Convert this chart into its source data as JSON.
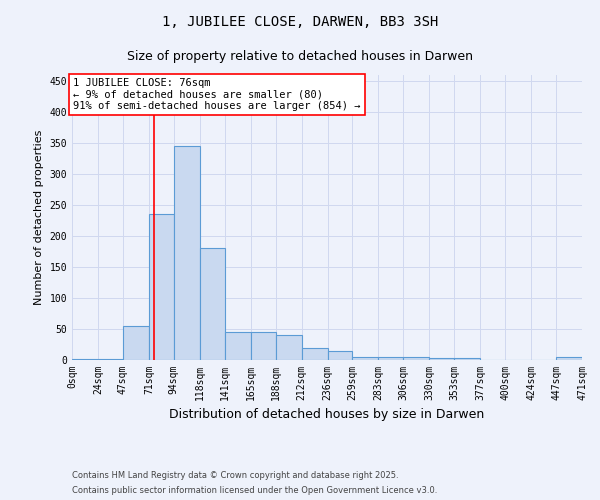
{
  "title": "1, JUBILEE CLOSE, DARWEN, BB3 3SH",
  "subtitle": "Size of property relative to detached houses in Darwen",
  "xlabel": "Distribution of detached houses by size in Darwen",
  "ylabel": "Number of detached properties",
  "bin_edges": [
    0,
    24,
    47,
    71,
    94,
    118,
    141,
    165,
    188,
    212,
    236,
    259,
    283,
    306,
    330,
    353,
    377,
    400,
    424,
    447,
    471
  ],
  "bar_heights": [
    1,
    2,
    55,
    235,
    345,
    180,
    45,
    45,
    40,
    20,
    14,
    5,
    5,
    5,
    3,
    3,
    0,
    0,
    0,
    5
  ],
  "bar_color": "#c9d9f0",
  "bar_edge_color": "#5b9bd5",
  "bar_edge_width": 0.8,
  "property_line_x": 76,
  "property_line_color": "red",
  "annotation_text": "1 JUBILEE CLOSE: 76sqm\n← 9% of detached houses are smaller (80)\n91% of semi-detached houses are larger (854) →",
  "annotation_box_color": "white",
  "annotation_box_edge_color": "red",
  "ylim": [
    0,
    460
  ],
  "yticks": [
    0,
    50,
    100,
    150,
    200,
    250,
    300,
    350,
    400,
    450
  ],
  "background_color": "#eef2fb",
  "grid_color": "#d0d8ef",
  "footnote1": "Contains HM Land Registry data © Crown copyright and database right 2025.",
  "footnote2": "Contains public sector information licensed under the Open Government Licence v3.0.",
  "title_fontsize": 10,
  "subtitle_fontsize": 9,
  "tick_label_fontsize": 7,
  "ylabel_fontsize": 8,
  "xlabel_fontsize": 9,
  "annotation_fontsize": 7.5,
  "footnote_fontsize": 6
}
